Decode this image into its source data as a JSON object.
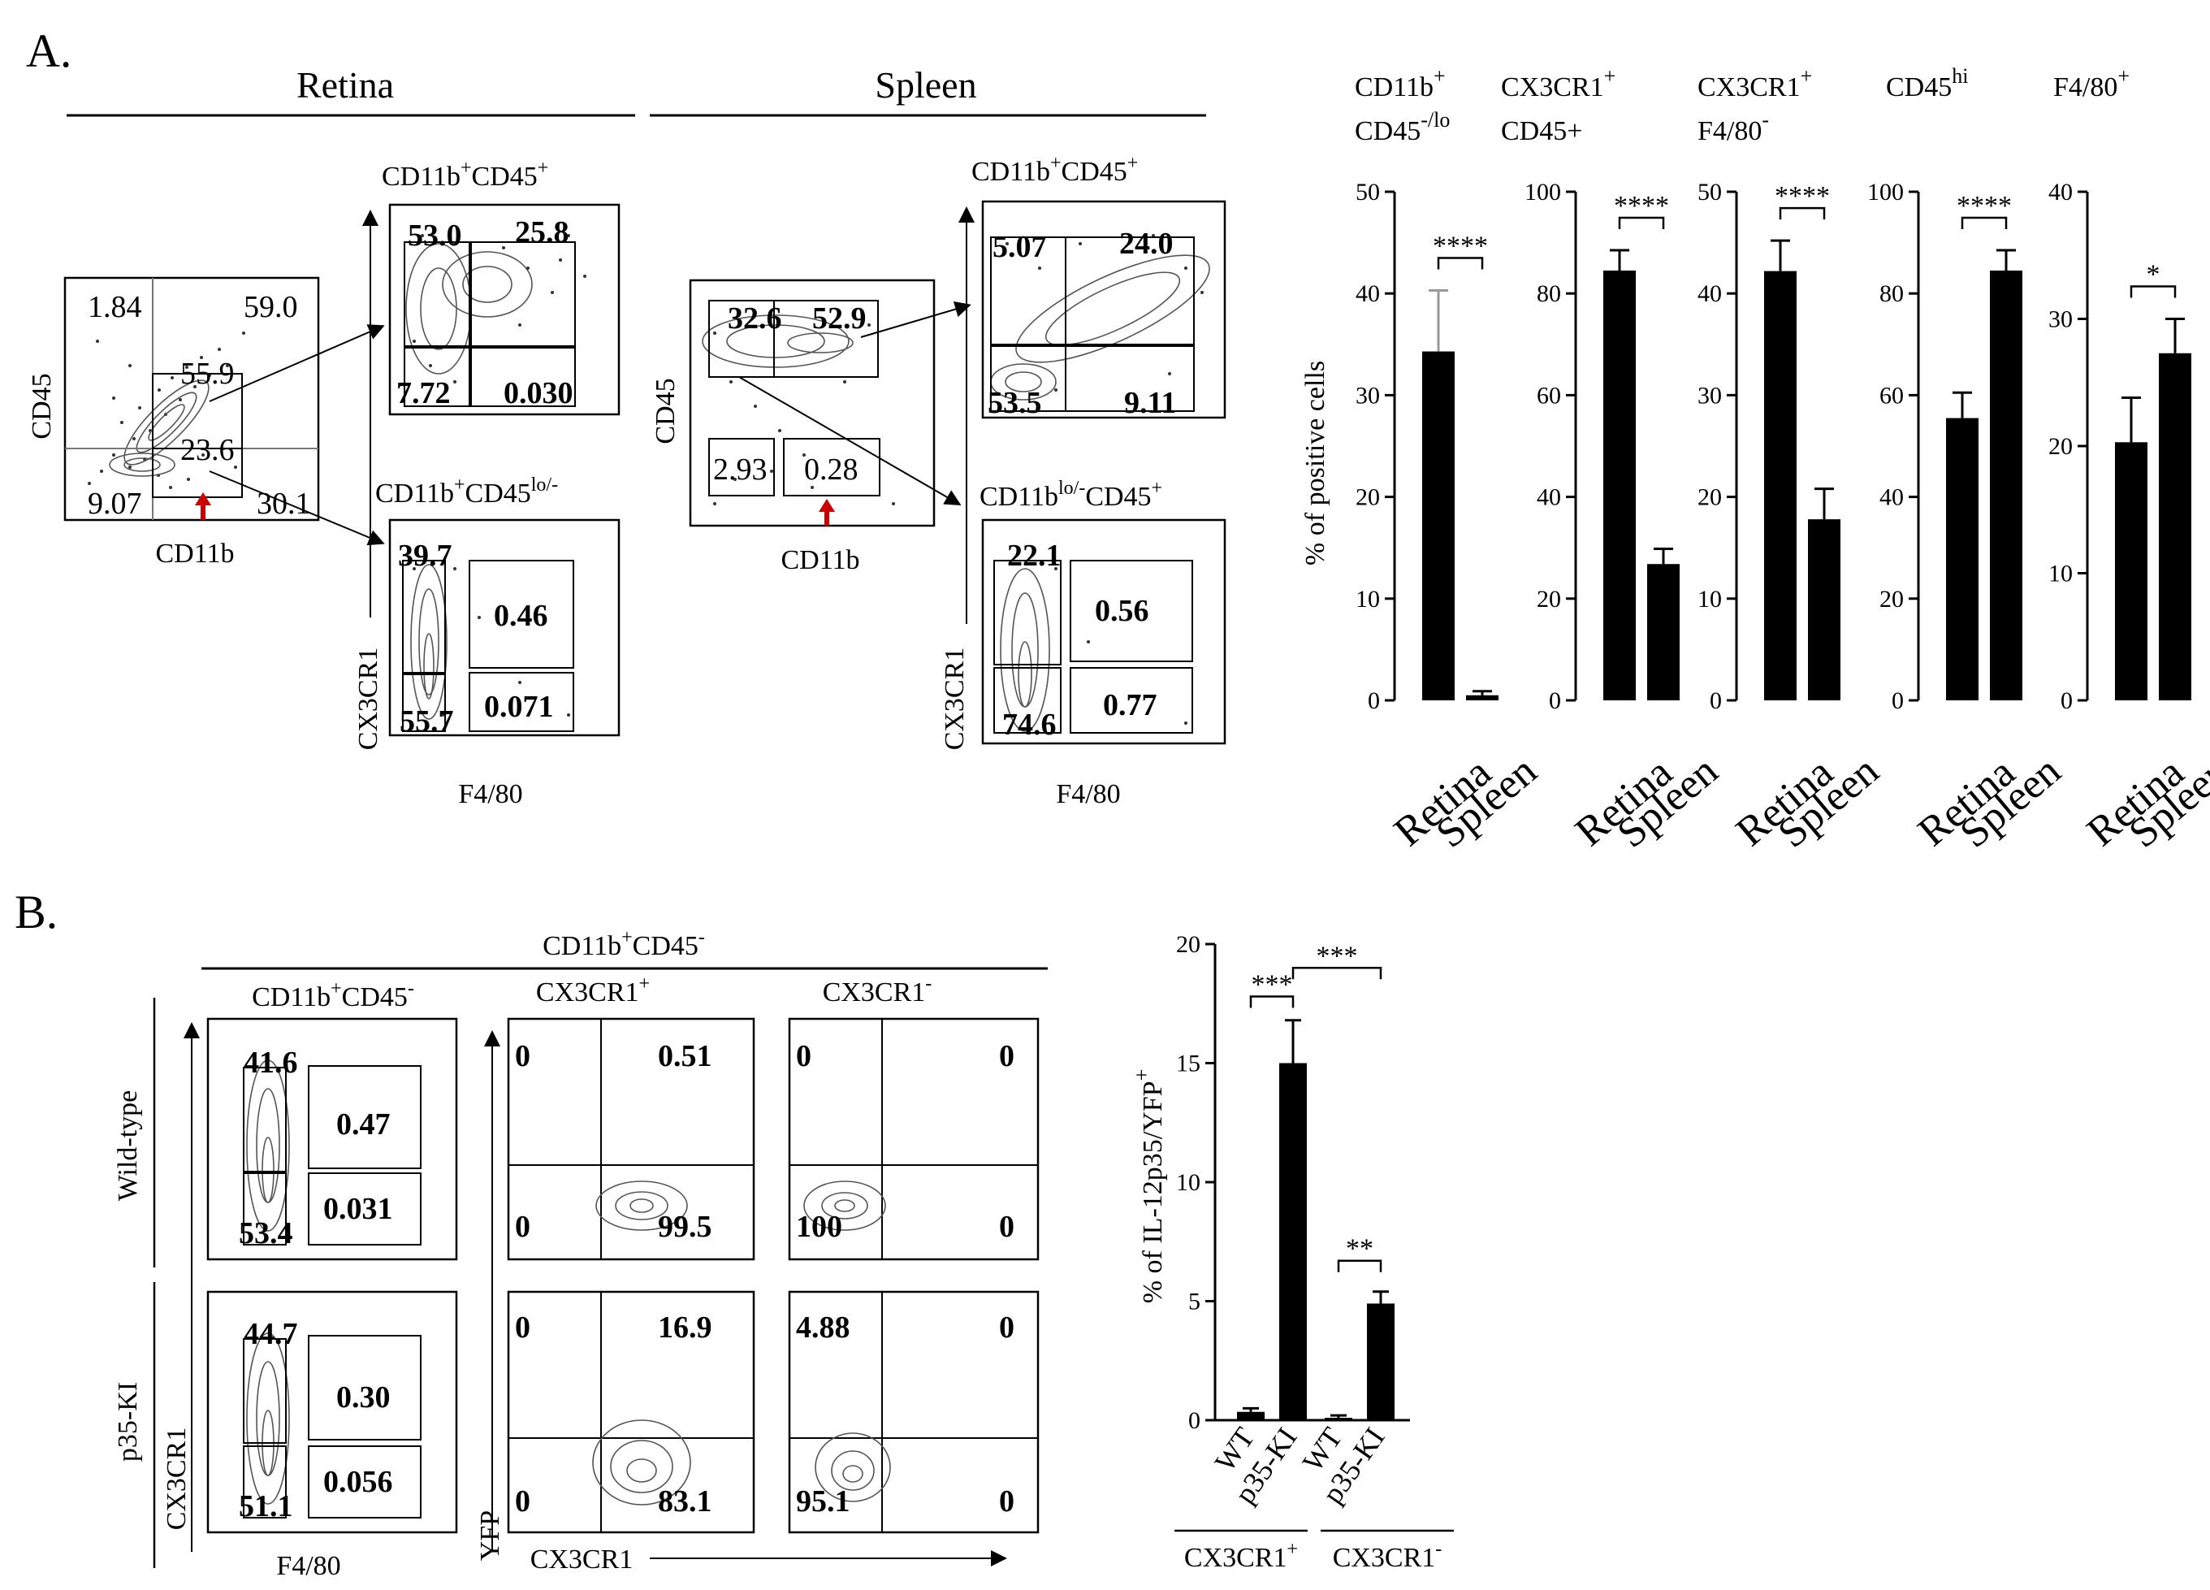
{
  "panelA": {
    "label": "A.",
    "retina_title": "Retina",
    "spleen_title": "Spleen",
    "retina_scatter": {
      "ylabel": "CD45",
      "xlabel": "CD11b",
      "q_ul": "1.84",
      "q_ur": "59.0",
      "mid": "55.9",
      "low": "23.6",
      "q_ll": "9.07",
      "q_lr": "30.1"
    },
    "retina_top": {
      "title_main": "CD11b",
      "title_sup1": "+",
      "title_mid": "CD45",
      "title_sup2": "+",
      "v_ul": "53.0",
      "v_ur": "25.8",
      "v_ll": "7.72",
      "v_lr": "0.030"
    },
    "retina_bottom": {
      "title_main": "CD11b",
      "title_sup1": "+",
      "title_mid": "CD45",
      "title_sup2": "lo/-",
      "v_ul": "39.7",
      "v_ur": "0.46",
      "v_ll": "55.7",
      "v_lr": "0.071",
      "ylabel": "CX3CR1",
      "xlabel": "F4/80"
    },
    "spleen_scatter": {
      "ylabel": "CD45",
      "xlabel": "CD11b",
      "g1": "32.6",
      "g2": "52.9",
      "g3": "2.93",
      "g4": "0.28"
    },
    "spleen_top": {
      "title_main": "CD11b",
      "title_sup1": "+",
      "title_mid": "CD45",
      "title_sup2": "+",
      "v_ul": "5.07",
      "v_ur": "24.0",
      "v_ll": "53.5",
      "v_lr": "9.11"
    },
    "spleen_bottom": {
      "title_main": "CD11b",
      "title_sup1": "lo/-",
      "title_mid": "CD45",
      "title_sup2": "+",
      "v_ul": "22.1",
      "v_ur": "0.56",
      "v_ll": "74.6",
      "v_lr": "0.77",
      "ylabel": "CX3CR1",
      "xlabel": "F4/80"
    },
    "bar_ylabel": "% of positive cells"
  },
  "chart_data": [
    {
      "type": "bar",
      "title_parts": [
        "CD11b",
        "+",
        "CD45",
        "-/lo"
      ],
      "categories": [
        "Retina",
        "Spleen"
      ],
      "values": [
        34.3,
        0.5
      ],
      "errors": [
        6.0,
        0.4
      ],
      "ylim": [
        0,
        50
      ],
      "yticks": [
        "0",
        "10",
        "20",
        "30",
        "40",
        "50"
      ],
      "significance": "****",
      "ylabel": "% of positive cells"
    },
    {
      "type": "bar",
      "title_parts": [
        "CX3CR1",
        "+",
        "CD45+",
        ""
      ],
      "categories": [
        "Retina",
        "Spleen"
      ],
      "values": [
        84.5,
        26.8
      ],
      "errors": [
        4.0,
        3.0
      ],
      "ylim": [
        0,
        100
      ],
      "yticks": [
        "0",
        "20",
        "40",
        "60",
        "80",
        "100"
      ],
      "significance": "****"
    },
    {
      "type": "bar",
      "title_parts": [
        "CX3CR1",
        "+",
        "F4/80",
        "-"
      ],
      "categories": [
        "Retina",
        "Spleen"
      ],
      "values": [
        42.2,
        17.8
      ],
      "errors": [
        3.0,
        3.0
      ],
      "ylim": [
        0,
        50
      ],
      "yticks": [
        "0",
        "10",
        "20",
        "30",
        "40",
        "50"
      ],
      "significance": "****"
    },
    {
      "type": "bar",
      "title_parts": [
        "CD45",
        "hi",
        "",
        ""
      ],
      "categories": [
        "Retina",
        "Spleen"
      ],
      "values": [
        55.5,
        84.5
      ],
      "errors": [
        5.0,
        4.0
      ],
      "ylim": [
        0,
        100
      ],
      "yticks": [
        "0",
        "20",
        "40",
        "60",
        "80",
        "100"
      ],
      "significance": "****"
    },
    {
      "type": "bar",
      "title_parts": [
        "F4/80",
        "+",
        "",
        ""
      ],
      "categories": [
        "Retina",
        "Spleen"
      ],
      "values": [
        20.3,
        27.3
      ],
      "errors": [
        3.5,
        2.7
      ],
      "ylim": [
        0,
        40
      ],
      "yticks": [
        "0",
        "10",
        "20",
        "30",
        "40"
      ],
      "significance": "*"
    },
    {
      "type": "bar",
      "ylabel_main": "% of IL-12p35/YFP",
      "ylabel_sup": "+",
      "categories": [
        "WT",
        "p35-KI",
        "WT",
        "p35-KI"
      ],
      "values": [
        0.35,
        15.0,
        0.1,
        4.9
      ],
      "errors": [
        0.15,
        1.8,
        0.1,
        0.5
      ],
      "ylim": [
        0,
        20
      ],
      "yticks": [
        "0",
        "5",
        "10",
        "15",
        "20"
      ],
      "significance": [
        "***",
        "***",
        "**"
      ],
      "groups": [
        {
          "main": "CX3CR1",
          "sup": "+"
        },
        {
          "main": "CX3CR1",
          "sup": "-"
        }
      ]
    }
  ],
  "panelB": {
    "label": "B.",
    "header_main": "CD11b",
    "header_sup1": "+",
    "header_mid": "CD45",
    "header_sup2": "-",
    "col1_main": "CD11b",
    "col1_sup1": "+",
    "col1_mid": "CD45",
    "col1_sup2": "-",
    "col2_main": "CX3CR1",
    "col2_sup": "+",
    "col3_main": "CX3CR1",
    "col3_sup": "-",
    "row1": "Wild-type",
    "row2": "p35-KI",
    "ylabel_left": "CX3CR1",
    "xlabel_left": "F4/80",
    "ylabel_mid": "YFP",
    "xlabel_mid": "CX3CR1",
    "wt_c1": {
      "ul": "41.6",
      "ur": "0.47",
      "ll": "53.4",
      "lr": "0.031"
    },
    "wt_c2": {
      "ul": "0",
      "ur": "0.51",
      "ll": "0",
      "lr": "99.5"
    },
    "wt_c3": {
      "ul": "0",
      "ur": "0",
      "ll": "100",
      "lr": "0"
    },
    "ki_c1": {
      "ul": "44.7",
      "ur": "0.30",
      "ll": "51.1",
      "lr": "0.056"
    },
    "ki_c2": {
      "ul": "0",
      "ur": "16.9",
      "ll": "0",
      "lr": "83.1"
    },
    "ki_c3": {
      "ul": "4.88",
      "ur": "0",
      "ll": "95.1",
      "lr": "0"
    }
  }
}
